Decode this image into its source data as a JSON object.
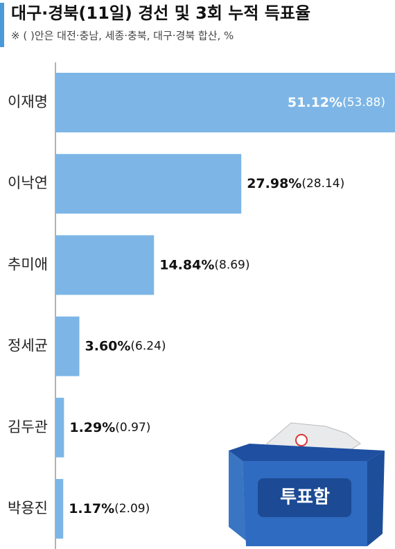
{
  "chart_data": {
    "type": "bar",
    "orientation": "horizontal",
    "title": "대구·경북(11일) 경선 및 3회 누적 득표율",
    "subtitle": "※ ( )안은 대전·충남, 세종·충북, 대구·경북 합산, %",
    "categories": [
      "이재명",
      "이낙연",
      "추미애",
      "정세균",
      "김두관",
      "박용진"
    ],
    "series": [
      {
        "name": "대구·경북(11일)",
        "color": "#7db6e6",
        "values": [
          51.12,
          27.98,
          14.84,
          3.6,
          1.29,
          1.17
        ],
        "value_labels": [
          "51.12%",
          "27.98%",
          "14.84%",
          "3.60%",
          "1.29%",
          "1.17%"
        ]
      },
      {
        "name": "3회 누적",
        "values": [
          53.88,
          28.14,
          8.69,
          6.24,
          0.97,
          2.09
        ],
        "value_labels": [
          "(53.88)",
          "(28.14)",
          "(8.69)",
          "(6.24)",
          "(0.97)",
          "(2.09)"
        ]
      }
    ],
    "annotation": "투표함"
  }
}
